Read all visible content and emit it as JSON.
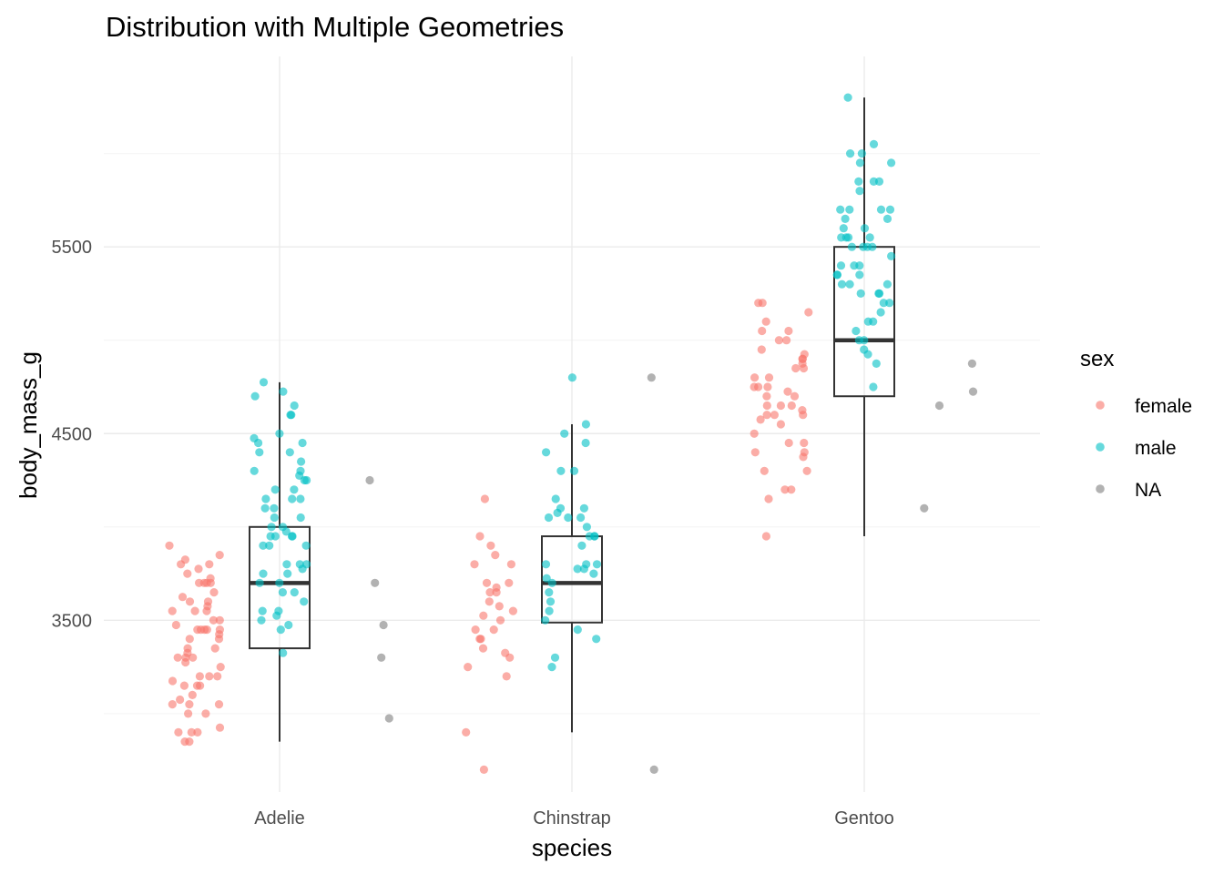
{
  "chart_data": {
    "type": "scatter",
    "title": "Distribution with Multiple Geometries",
    "xlabel": "species",
    "ylabel": "body_mass_g",
    "categories": [
      "Adelie",
      "Chinstrap",
      "Gentoo"
    ],
    "ylim": [
      2580,
      6520
    ],
    "yticks": [
      3500,
      4500,
      5500
    ],
    "grid": true,
    "legend": {
      "title": "sex",
      "position": "right",
      "entries": [
        {
          "label": "female",
          "color": "#F8766D"
        },
        {
          "label": "male",
          "color": "#00BFC4"
        },
        {
          "label": "NA",
          "color": "#7F7F7F"
        }
      ]
    },
    "boxplots": [
      {
        "category": "Adelie",
        "min": 2850,
        "q1": 3350,
        "median": 3700,
        "q3": 4000,
        "max": 4775
      },
      {
        "category": "Chinstrap",
        "min": 2900,
        "q1": 3488,
        "median": 3700,
        "q3": 3950,
        "max": 4550
      },
      {
        "category": "Gentoo",
        "min": 3950,
        "q1": 4700,
        "median": 5000,
        "q3": 5500,
        "max": 6300
      }
    ],
    "series": [
      {
        "name": "female",
        "color": "#F8766D",
        "points": [
          [
            "Adelie",
            3900
          ],
          [
            "Adelie",
            3850
          ],
          [
            "Adelie",
            3825
          ],
          [
            "Adelie",
            3800
          ],
          [
            "Adelie",
            3800
          ],
          [
            "Adelie",
            3775
          ],
          [
            "Adelie",
            3750
          ],
          [
            "Adelie",
            3725
          ],
          [
            "Adelie",
            3700
          ],
          [
            "Adelie",
            3700
          ],
          [
            "Adelie",
            3700
          ],
          [
            "Adelie",
            3700
          ],
          [
            "Adelie",
            3650
          ],
          [
            "Adelie",
            3625
          ],
          [
            "Adelie",
            3600
          ],
          [
            "Adelie",
            3600
          ],
          [
            "Adelie",
            3575
          ],
          [
            "Adelie",
            3550
          ],
          [
            "Adelie",
            3550
          ],
          [
            "Adelie",
            3550
          ],
          [
            "Adelie",
            3500
          ],
          [
            "Adelie",
            3500
          ],
          [
            "Adelie",
            3475
          ],
          [
            "Adelie",
            3450
          ],
          [
            "Adelie",
            3450
          ],
          [
            "Adelie",
            3450
          ],
          [
            "Adelie",
            3450
          ],
          [
            "Adelie",
            3450
          ],
          [
            "Adelie",
            3425
          ],
          [
            "Adelie",
            3400
          ],
          [
            "Adelie",
            3400
          ],
          [
            "Adelie",
            3350
          ],
          [
            "Adelie",
            3350
          ],
          [
            "Adelie",
            3325
          ],
          [
            "Adelie",
            3300
          ],
          [
            "Adelie",
            3300
          ],
          [
            "Adelie",
            3300
          ],
          [
            "Adelie",
            3275
          ],
          [
            "Adelie",
            3250
          ],
          [
            "Adelie",
            3200
          ],
          [
            "Adelie",
            3200
          ],
          [
            "Adelie",
            3200
          ],
          [
            "Adelie",
            3175
          ],
          [
            "Adelie",
            3150
          ],
          [
            "Adelie",
            3150
          ],
          [
            "Adelie",
            3150
          ],
          [
            "Adelie",
            3100
          ],
          [
            "Adelie",
            3075
          ],
          [
            "Adelie",
            3050
          ],
          [
            "Adelie",
            3050
          ],
          [
            "Adelie",
            3050
          ],
          [
            "Adelie",
            3000
          ],
          [
            "Adelie",
            3000
          ],
          [
            "Adelie",
            2925
          ],
          [
            "Adelie",
            2900
          ],
          [
            "Adelie",
            2900
          ],
          [
            "Adelie",
            2900
          ],
          [
            "Adelie",
            2850
          ],
          [
            "Adelie",
            2850
          ],
          [
            "Chinstrap",
            4150
          ],
          [
            "Chinstrap",
            3950
          ],
          [
            "Chinstrap",
            3900
          ],
          [
            "Chinstrap",
            3850
          ],
          [
            "Chinstrap",
            3800
          ],
          [
            "Chinstrap",
            3800
          ],
          [
            "Chinstrap",
            3700
          ],
          [
            "Chinstrap",
            3700
          ],
          [
            "Chinstrap",
            3675
          ],
          [
            "Chinstrap",
            3650
          ],
          [
            "Chinstrap",
            3650
          ],
          [
            "Chinstrap",
            3600
          ],
          [
            "Chinstrap",
            3575
          ],
          [
            "Chinstrap",
            3550
          ],
          [
            "Chinstrap",
            3525
          ],
          [
            "Chinstrap",
            3500
          ],
          [
            "Chinstrap",
            3450
          ],
          [
            "Chinstrap",
            3450
          ],
          [
            "Chinstrap",
            3400
          ],
          [
            "Chinstrap",
            3400
          ],
          [
            "Chinstrap",
            3350
          ],
          [
            "Chinstrap",
            3325
          ],
          [
            "Chinstrap",
            3300
          ],
          [
            "Chinstrap",
            3250
          ],
          [
            "Chinstrap",
            3200
          ],
          [
            "Chinstrap",
            2900
          ],
          [
            "Chinstrap",
            2700
          ],
          [
            "Gentoo",
            5200
          ],
          [
            "Gentoo",
            5200
          ],
          [
            "Gentoo",
            5150
          ],
          [
            "Gentoo",
            5100
          ],
          [
            "Gentoo",
            5050
          ],
          [
            "Gentoo",
            5050
          ],
          [
            "Gentoo",
            5000
          ],
          [
            "Gentoo",
            5000
          ],
          [
            "Gentoo",
            4950
          ],
          [
            "Gentoo",
            4925
          ],
          [
            "Gentoo",
            4900
          ],
          [
            "Gentoo",
            4900
          ],
          [
            "Gentoo",
            4875
          ],
          [
            "Gentoo",
            4850
          ],
          [
            "Gentoo",
            4850
          ],
          [
            "Gentoo",
            4800
          ],
          [
            "Gentoo",
            4800
          ],
          [
            "Gentoo",
            4750
          ],
          [
            "Gentoo",
            4750
          ],
          [
            "Gentoo",
            4750
          ],
          [
            "Gentoo",
            4725
          ],
          [
            "Gentoo",
            4700
          ],
          [
            "Gentoo",
            4700
          ],
          [
            "Gentoo",
            4650
          ],
          [
            "Gentoo",
            4650
          ],
          [
            "Gentoo",
            4650
          ],
          [
            "Gentoo",
            4625
          ],
          [
            "Gentoo",
            4600
          ],
          [
            "Gentoo",
            4600
          ],
          [
            "Gentoo",
            4600
          ],
          [
            "Gentoo",
            4575
          ],
          [
            "Gentoo",
            4550
          ],
          [
            "Gentoo",
            4500
          ],
          [
            "Gentoo",
            4450
          ],
          [
            "Gentoo",
            4450
          ],
          [
            "Gentoo",
            4400
          ],
          [
            "Gentoo",
            4400
          ],
          [
            "Gentoo",
            4375
          ],
          [
            "Gentoo",
            4300
          ],
          [
            "Gentoo",
            4300
          ],
          [
            "Gentoo",
            4200
          ],
          [
            "Gentoo",
            4200
          ],
          [
            "Gentoo",
            4150
          ],
          [
            "Gentoo",
            3950
          ]
        ]
      },
      {
        "name": "male",
        "color": "#00BFC4",
        "points": [
          [
            "Adelie",
            4775
          ],
          [
            "Adelie",
            4725
          ],
          [
            "Adelie",
            4700
          ],
          [
            "Adelie",
            4650
          ],
          [
            "Adelie",
            4600
          ],
          [
            "Adelie",
            4600
          ],
          [
            "Adelie",
            4500
          ],
          [
            "Adelie",
            4475
          ],
          [
            "Adelie",
            4450
          ],
          [
            "Adelie",
            4450
          ],
          [
            "Adelie",
            4400
          ],
          [
            "Adelie",
            4400
          ],
          [
            "Adelie",
            4350
          ],
          [
            "Adelie",
            4300
          ],
          [
            "Adelie",
            4300
          ],
          [
            "Adelie",
            4275
          ],
          [
            "Adelie",
            4250
          ],
          [
            "Adelie",
            4250
          ],
          [
            "Adelie",
            4200
          ],
          [
            "Adelie",
            4200
          ],
          [
            "Adelie",
            4150
          ],
          [
            "Adelie",
            4150
          ],
          [
            "Adelie",
            4150
          ],
          [
            "Adelie",
            4100
          ],
          [
            "Adelie",
            4100
          ],
          [
            "Adelie",
            4050
          ],
          [
            "Adelie",
            4050
          ],
          [
            "Adelie",
            4000
          ],
          [
            "Adelie",
            4000
          ],
          [
            "Adelie",
            3975
          ],
          [
            "Adelie",
            3950
          ],
          [
            "Adelie",
            3950
          ],
          [
            "Adelie",
            3950
          ],
          [
            "Adelie",
            3950
          ],
          [
            "Adelie",
            3900
          ],
          [
            "Adelie",
            3900
          ],
          [
            "Adelie",
            3900
          ],
          [
            "Adelie",
            3800
          ],
          [
            "Adelie",
            3800
          ],
          [
            "Adelie",
            3800
          ],
          [
            "Adelie",
            3775
          ],
          [
            "Adelie",
            3750
          ],
          [
            "Adelie",
            3750
          ],
          [
            "Adelie",
            3700
          ],
          [
            "Adelie",
            3700
          ],
          [
            "Adelie",
            3650
          ],
          [
            "Adelie",
            3650
          ],
          [
            "Adelie",
            3600
          ],
          [
            "Adelie",
            3550
          ],
          [
            "Adelie",
            3550
          ],
          [
            "Adelie",
            3525
          ],
          [
            "Adelie",
            3500
          ],
          [
            "Adelie",
            3475
          ],
          [
            "Adelie",
            3450
          ],
          [
            "Adelie",
            3325
          ],
          [
            "Chinstrap",
            4800
          ],
          [
            "Chinstrap",
            4550
          ],
          [
            "Chinstrap",
            4500
          ],
          [
            "Chinstrap",
            4450
          ],
          [
            "Chinstrap",
            4400
          ],
          [
            "Chinstrap",
            4300
          ],
          [
            "Chinstrap",
            4300
          ],
          [
            "Chinstrap",
            4150
          ],
          [
            "Chinstrap",
            4100
          ],
          [
            "Chinstrap",
            4100
          ],
          [
            "Chinstrap",
            4075
          ],
          [
            "Chinstrap",
            4050
          ],
          [
            "Chinstrap",
            4050
          ],
          [
            "Chinstrap",
            4050
          ],
          [
            "Chinstrap",
            4000
          ],
          [
            "Chinstrap",
            3950
          ],
          [
            "Chinstrap",
            3950
          ],
          [
            "Chinstrap",
            3950
          ],
          [
            "Chinstrap",
            3900
          ],
          [
            "Chinstrap",
            3800
          ],
          [
            "Chinstrap",
            3800
          ],
          [
            "Chinstrap",
            3800
          ],
          [
            "Chinstrap",
            3775
          ],
          [
            "Chinstrap",
            3775
          ],
          [
            "Chinstrap",
            3750
          ],
          [
            "Chinstrap",
            3725
          ],
          [
            "Chinstrap",
            3700
          ],
          [
            "Chinstrap",
            3650
          ],
          [
            "Chinstrap",
            3600
          ],
          [
            "Chinstrap",
            3550
          ],
          [
            "Chinstrap",
            3500
          ],
          [
            "Chinstrap",
            3450
          ],
          [
            "Chinstrap",
            3400
          ],
          [
            "Chinstrap",
            3300
          ],
          [
            "Chinstrap",
            3250
          ],
          [
            "Gentoo",
            6300
          ],
          [
            "Gentoo",
            6050
          ],
          [
            "Gentoo",
            6000
          ],
          [
            "Gentoo",
            6000
          ],
          [
            "Gentoo",
            5950
          ],
          [
            "Gentoo",
            5950
          ],
          [
            "Gentoo",
            5850
          ],
          [
            "Gentoo",
            5850
          ],
          [
            "Gentoo",
            5850
          ],
          [
            "Gentoo",
            5800
          ],
          [
            "Gentoo",
            5700
          ],
          [
            "Gentoo",
            5700
          ],
          [
            "Gentoo",
            5700
          ],
          [
            "Gentoo",
            5700
          ],
          [
            "Gentoo",
            5650
          ],
          [
            "Gentoo",
            5650
          ],
          [
            "Gentoo",
            5600
          ],
          [
            "Gentoo",
            5600
          ],
          [
            "Gentoo",
            5550
          ],
          [
            "Gentoo",
            5550
          ],
          [
            "Gentoo",
            5550
          ],
          [
            "Gentoo",
            5550
          ],
          [
            "Gentoo",
            5500
          ],
          [
            "Gentoo",
            5500
          ],
          [
            "Gentoo",
            5500
          ],
          [
            "Gentoo",
            5500
          ],
          [
            "Gentoo",
            5450
          ],
          [
            "Gentoo",
            5400
          ],
          [
            "Gentoo",
            5400
          ],
          [
            "Gentoo",
            5400
          ],
          [
            "Gentoo",
            5350
          ],
          [
            "Gentoo",
            5350
          ],
          [
            "Gentoo",
            5350
          ],
          [
            "Gentoo",
            5300
          ],
          [
            "Gentoo",
            5300
          ],
          [
            "Gentoo",
            5300
          ],
          [
            "Gentoo",
            5250
          ],
          [
            "Gentoo",
            5250
          ],
          [
            "Gentoo",
            5250
          ],
          [
            "Gentoo",
            5200
          ],
          [
            "Gentoo",
            5200
          ],
          [
            "Gentoo",
            5150
          ],
          [
            "Gentoo",
            5100
          ],
          [
            "Gentoo",
            5100
          ],
          [
            "Gentoo",
            5050
          ],
          [
            "Gentoo",
            5000
          ],
          [
            "Gentoo",
            5000
          ],
          [
            "Gentoo",
            4950
          ],
          [
            "Gentoo",
            4925
          ],
          [
            "Gentoo",
            4875
          ],
          [
            "Gentoo",
            4750
          ]
        ]
      },
      {
        "name": "NA",
        "color": "#7F7F7F",
        "points": [
          [
            "Adelie",
            4250
          ],
          [
            "Adelie",
            3700
          ],
          [
            "Adelie",
            3475
          ],
          [
            "Adelie",
            3300
          ],
          [
            "Adelie",
            2975
          ],
          [
            "Chinstrap",
            4800
          ],
          [
            "Chinstrap",
            2700
          ],
          [
            "Gentoo",
            4875
          ],
          [
            "Gentoo",
            4725
          ],
          [
            "Gentoo",
            4650
          ],
          [
            "Gentoo",
            4100
          ]
        ]
      }
    ]
  }
}
